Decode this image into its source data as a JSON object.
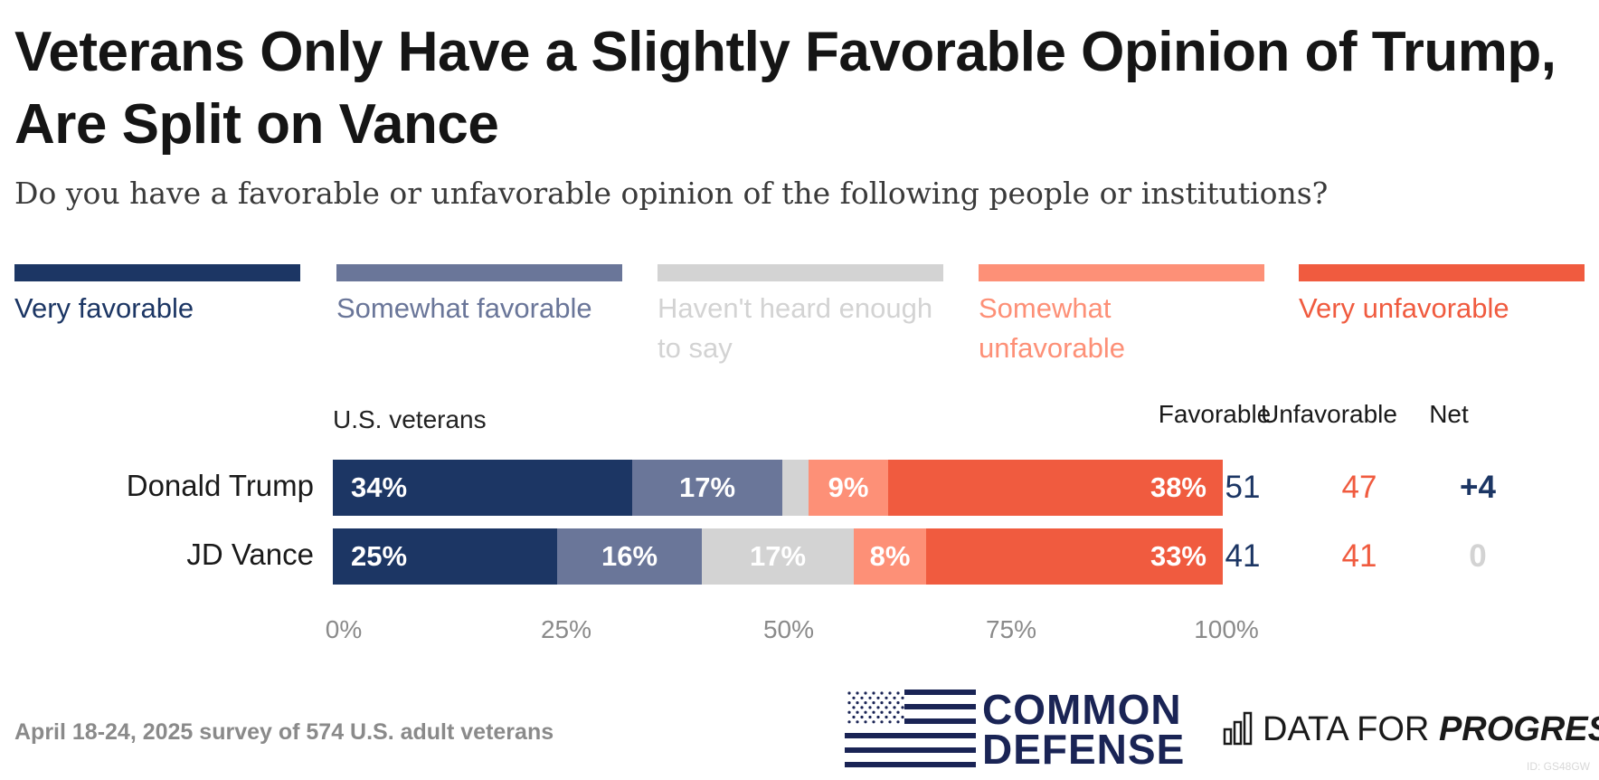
{
  "title": "Veterans Only Have a Slightly Favorable Opinion of Trump, Are Split on Vance",
  "subtitle": "Do you have a favorable or unfavorable opinion of the following people or institutions?",
  "legend": [
    {
      "label": "Very favorable",
      "color": "#1c3664"
    },
    {
      "label": "Somewhat favorable",
      "color": "#6a7699"
    },
    {
      "label": "Haven't heard enough to say",
      "color": "#d3d3d3"
    },
    {
      "label": "Somewhat unfavorable",
      "color": "#fd9077"
    },
    {
      "label": "Very unfavorable",
      "color": "#f05b3f"
    }
  ],
  "subhead": "U.S. veterans",
  "columns": {
    "favorable": {
      "label": "Favorable",
      "color": "#1c3664"
    },
    "unfavorable": {
      "label": "Unfavorable",
      "color": "#f05b3f"
    },
    "net": {
      "label": "Net",
      "color": "#1a1a1a"
    }
  },
  "chart_data": {
    "type": "bar",
    "orientation": "horizontal-stacked-100",
    "title": "Veterans Only Have a Slightly Favorable Opinion of Trump, Are Split on Vance",
    "categories": [
      "Donald Trump",
      "JD Vance"
    ],
    "series": [
      {
        "name": "Very favorable",
        "values": [
          34,
          25
        ],
        "labels": [
          "34%",
          "25%"
        ]
      },
      {
        "name": "Somewhat favorable",
        "values": [
          17,
          16
        ],
        "labels": [
          "17%",
          "16%"
        ]
      },
      {
        "name": "Haven't heard enough to say",
        "values": [
          3,
          17
        ],
        "labels": [
          "",
          "17%"
        ]
      },
      {
        "name": "Somewhat unfavorable",
        "values": [
          9,
          8
        ],
        "labels": [
          "9%",
          "8%"
        ]
      },
      {
        "name": "Very unfavorable",
        "values": [
          38,
          33
        ],
        "labels": [
          "38%",
          "33%"
        ]
      }
    ],
    "xlim": [
      0,
      100
    ],
    "xticks": [
      "0%",
      "25%",
      "50%",
      "75%",
      "100%"
    ],
    "summary": [
      {
        "favorable": "51",
        "unfavorable": "47",
        "net": "+4",
        "net_color": "#1c3664"
      },
      {
        "favorable": "41",
        "unfavorable": "41",
        "net": "0",
        "net_color": "#d3d3d3"
      }
    ]
  },
  "footer": "April 18-24, 2025 survey of 574 U.S. adult veterans",
  "logos": {
    "common_defense_line1": "COMMON",
    "common_defense_line2": "DEFENSE",
    "dfp_regular": "DATA FOR ",
    "dfp_bold": "PROGRESS"
  },
  "id_tag": "ID: GS48GW"
}
